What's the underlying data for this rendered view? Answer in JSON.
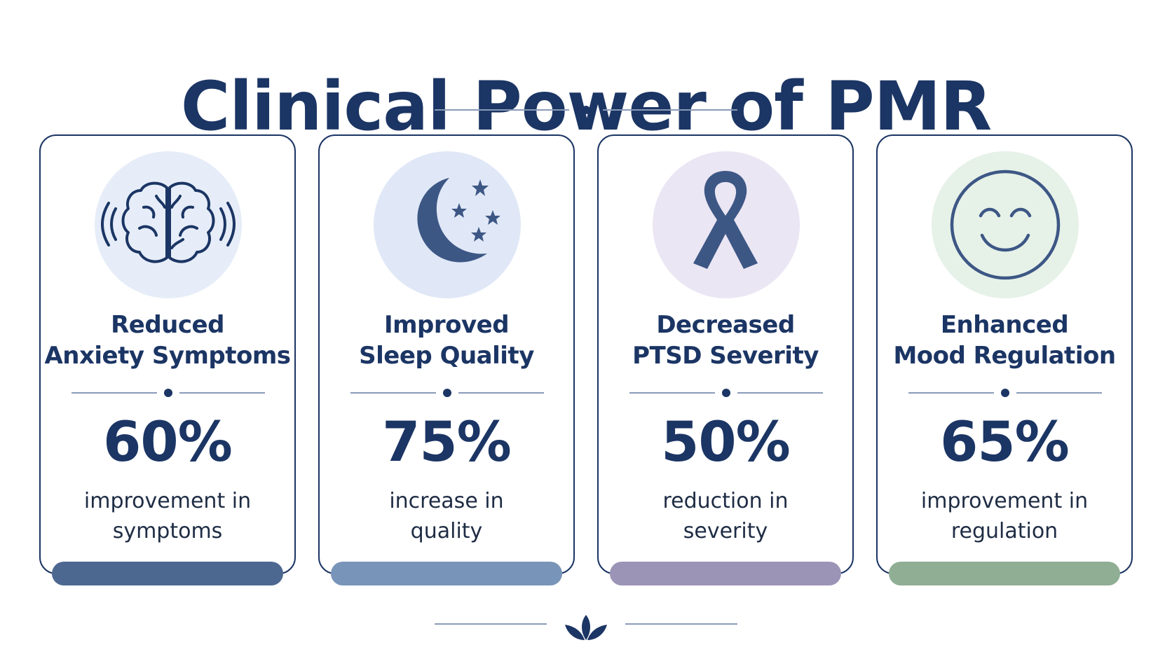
{
  "page": {
    "title": "Clinical Power of PMR",
    "accent_color": "#1b3564"
  },
  "cards": [
    {
      "title_line1": "Reduced",
      "title_line2": "Anxiety Symptoms",
      "value": "60%",
      "desc_line1": "improvement in",
      "desc_line2": "symptoms",
      "icon": "brain-icon",
      "circle_color": "#e6edf8",
      "bar_color": "#4d6890"
    },
    {
      "title_line1": "Improved",
      "title_line2": "Sleep Quality",
      "value": "75%",
      "desc_line1": "increase in",
      "desc_line2": "quality",
      "icon": "moon-stars-icon",
      "circle_color": "#e0e8f7",
      "bar_color": "#7894b8"
    },
    {
      "title_line1": "Decreased",
      "title_line2": "PTSD Severity",
      "value": "50%",
      "desc_line1": "reduction in",
      "desc_line2": "severity",
      "icon": "ribbon-icon",
      "circle_color": "#ebe6f4",
      "bar_color": "#9c94b6"
    },
    {
      "title_line1": "Enhanced",
      "title_line2": "Mood Regulation",
      "value": "65%",
      "desc_line1": "improvement in",
      "desc_line2": "regulation",
      "icon": "smiley-icon",
      "circle_color": "#e6f1e8",
      "bar_color": "#8fae94"
    }
  ],
  "footer": {
    "icon": "lotus-icon"
  }
}
